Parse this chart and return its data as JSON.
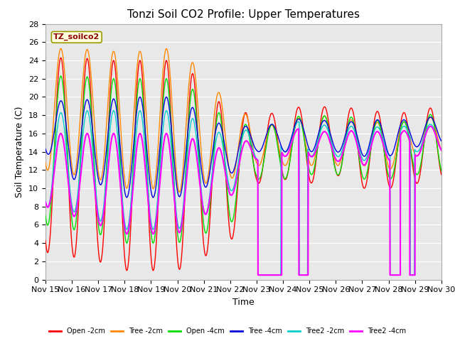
{
  "title": "Tonzi Soil CO2 Profile: Upper Temperatures",
  "xlabel": "Time",
  "ylabel": "Soil Temperature (C)",
  "ylim": [
    0,
    28
  ],
  "xlim": [
    0,
    15
  ],
  "plot_bg": "#e8e8e8",
  "legend_entries": [
    "Open -2cm",
    "Tree -2cm",
    "Open -4cm",
    "Tree -4cm",
    "Tree2 -2cm",
    "Tree2 -4cm"
  ],
  "legend_colors": [
    "#ff0000",
    "#ff8800",
    "#00dd00",
    "#0000dd",
    "#00cccc",
    "#ff00ff"
  ],
  "annotation_text": "TZ_soilco2",
  "xtick_labels": [
    "Nov 15",
    "Nov 16",
    "Nov 17",
    "Nov 18",
    "Nov 19",
    "Nov 20",
    "Nov 21",
    "Nov 22",
    "Nov 23",
    "Nov 24",
    "Nov 25",
    "Nov 26",
    "Nov 27",
    "Nov 28",
    "Nov 29",
    "Nov 30"
  ]
}
